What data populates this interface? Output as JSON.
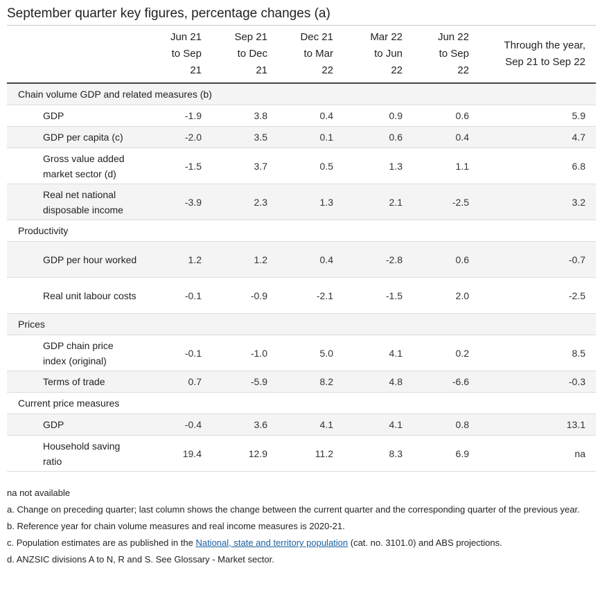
{
  "title": "September quarter key figures, percentage changes (a)",
  "columns": [
    {
      "l1": "Jun 21",
      "l2": "to Sep",
      "l3": "21"
    },
    {
      "l1": "Sep 21",
      "l2": "to Dec",
      "l3": "21"
    },
    {
      "l1": "Dec 21",
      "l2": "to Mar",
      "l3": "22"
    },
    {
      "l1": "Mar 22",
      "l2": "to Jun",
      "l3": "22"
    },
    {
      "l1": "Jun 22",
      "l2": "to Sep",
      "l3": "22"
    },
    {
      "l1": "Through the year,",
      "l2": "Sep 21 to Sep 22"
    }
  ],
  "sections": [
    {
      "title": "Chain volume GDP and related measures (b)",
      "rows": [
        {
          "label": "GDP",
          "values": [
            "-1.9",
            "3.8",
            "0.4",
            "0.9",
            "0.6",
            "5.9"
          ]
        },
        {
          "label": "GDP per capita (c)",
          "values": [
            "-2.0",
            "3.5",
            "0.1",
            "0.6",
            "0.4",
            "4.7"
          ]
        },
        {
          "label": "Gross value added market sector (d)",
          "values": [
            "-1.5",
            "3.7",
            "0.5",
            "1.3",
            "1.1",
            "6.8"
          ]
        },
        {
          "label": "Real net national disposable income",
          "values": [
            "-3.9",
            "2.3",
            "1.3",
            "2.1",
            "-2.5",
            "3.2"
          ]
        }
      ]
    },
    {
      "title": "Productivity",
      "rows": [
        {
          "label": "GDP per hour worked",
          "values": [
            "1.2",
            "1.2",
            "0.4",
            "-2.8",
            "0.6",
            "-0.7"
          ]
        },
        {
          "label": "Real unit labour costs",
          "values": [
            "-0.1",
            "-0.9",
            "-2.1",
            "-1.5",
            "2.0",
            "-2.5"
          ]
        }
      ]
    },
    {
      "title": "Prices",
      "rows": [
        {
          "label": "GDP chain price index (original)",
          "values": [
            "-0.1",
            "-1.0",
            "5.0",
            "4.1",
            "0.2",
            "8.5"
          ]
        },
        {
          "label": "Terms of trade",
          "values": [
            "0.7",
            "-5.9",
            "8.2",
            "4.8",
            "-6.6",
            "-0.3"
          ]
        }
      ]
    },
    {
      "title": "Current price measures",
      "rows": [
        {
          "label": "GDP",
          "values": [
            "-0.4",
            "3.6",
            "4.1",
            "4.1",
            "0.8",
            "13.1"
          ]
        },
        {
          "label": "Household saving ratio",
          "values": [
            "19.4",
            "12.9",
            "11.2",
            "8.3",
            "6.9",
            "na"
          ]
        }
      ]
    }
  ],
  "notes": {
    "na": "na not available",
    "a": "a. Change on preceding quarter; last column shows the change between the current quarter and the corresponding quarter of the previous year.",
    "b": "b. Reference year for chain volume measures and real income measures is 2020-21.",
    "c_pre": "c. Population estimates are as published in the ",
    "c_link": "National, state and territory population",
    "c_post": " (cat. no. 3101.0) and ABS projections.",
    "d": "d. ANZSIC divisions A to N, R and S. See Glossary - Market sector."
  }
}
